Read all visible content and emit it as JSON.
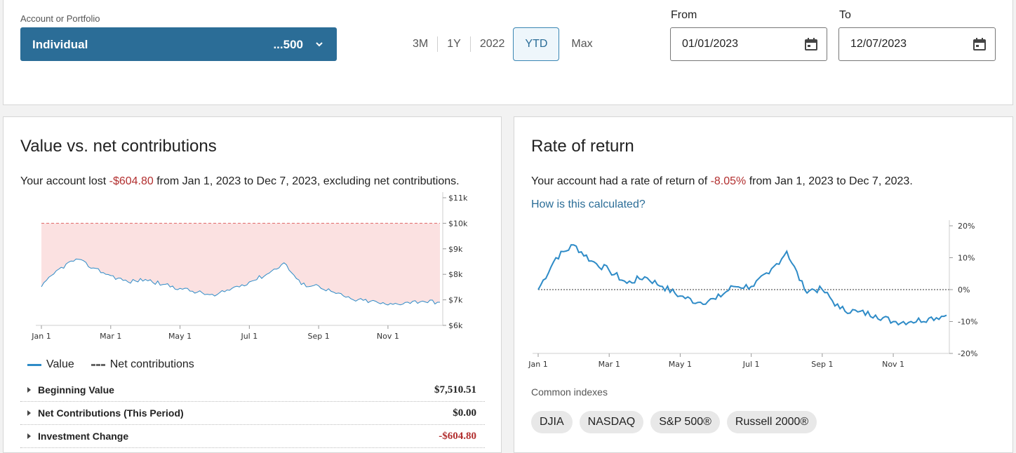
{
  "account": {
    "label": "Account or Portfolio",
    "name": "Individual",
    "number": "...500"
  },
  "range_tabs": [
    {
      "label": "3M",
      "active": false
    },
    {
      "label": "1Y",
      "active": false
    },
    {
      "label": "2022",
      "active": false
    },
    {
      "label": "YTD",
      "active": true
    },
    {
      "label": "Max",
      "active": false
    }
  ],
  "dates": {
    "from_label": "From",
    "from_value": "01/01/2023",
    "to_label": "To",
    "to_value": "12/07/2023"
  },
  "value_card": {
    "title": "Value vs. net contributions",
    "summary_pre": "Your account lost ",
    "summary_amount": "-$604.80",
    "summary_post": " from Jan 1, 2023 to Dec 7, 2023, excluding net contributions.",
    "legend_value": "Value",
    "legend_net": "Net contributions",
    "rows": [
      {
        "label": "Beginning Value",
        "value": "$7,510.51",
        "negative": false
      },
      {
        "label": "Net Contributions (This Period)",
        "value": "$0.00",
        "negative": false
      },
      {
        "label": "Investment Change",
        "value": "-$604.80",
        "negative": true
      }
    ]
  },
  "return_card": {
    "title": "Rate of return",
    "summary_pre": "Your account had a rate of return of ",
    "summary_amount": "-8.05%",
    "summary_post": " from Jan 1, 2023 to Dec 7, 2023.",
    "link": "How is this calculated?",
    "indexes_label": "Common indexes",
    "indexes": [
      "DJIA",
      "NASDAQ",
      "S&P 500®",
      "Russell 2000®"
    ]
  },
  "colors": {
    "accent": "#2b6d97",
    "line": "#2e8bc7",
    "negative": "#b22f2f",
    "fill": "#fbe1e1",
    "net_line": "#e06666"
  },
  "chart_data": [
    {
      "type": "area",
      "title": "",
      "x": [
        "Jan 1",
        "Jan 15",
        "Feb 1",
        "Feb 15",
        "Mar 1",
        "Mar 15",
        "Apr 1",
        "Apr 15",
        "May 1",
        "May 15",
        "Jun 1",
        "Jun 15",
        "Jul 1",
        "Jul 15",
        "Aug 1",
        "Aug 15",
        "Sep 1",
        "Sep 15",
        "Oct 1",
        "Oct 15",
        "Nov 1",
        "Nov 15",
        "Dec 1",
        "Dec 7"
      ],
      "x_ticks": [
        "Jan 1",
        "Mar 1",
        "May 1",
        "Jul 1",
        "Sep 1",
        "Nov 1"
      ],
      "y_ticks": [
        "$6k",
        "$7k",
        "$8k",
        "$9k",
        "$10k",
        "$11k"
      ],
      "ylim": [
        6000,
        11000
      ],
      "series": [
        {
          "name": "Value",
          "values": [
            7510,
            8200,
            8600,
            8250,
            7950,
            7700,
            7800,
            7600,
            7450,
            7300,
            7150,
            7450,
            7700,
            8000,
            8450,
            7600,
            7550,
            7250,
            7000,
            6950,
            6800,
            6900,
            6950,
            6906
          ]
        },
        {
          "name": "Net contributions",
          "values": [
            10000,
            10000,
            10000,
            10000,
            10000,
            10000,
            10000,
            10000,
            10000,
            10000,
            10000,
            10000,
            10000,
            10000,
            10000,
            10000,
            10000,
            10000,
            10000,
            10000,
            10000,
            10000,
            10000,
            10000
          ]
        }
      ]
    },
    {
      "type": "line",
      "title": "",
      "x": [
        "Jan 1",
        "Jan 15",
        "Feb 1",
        "Feb 15",
        "Mar 1",
        "Mar 15",
        "Apr 1",
        "Apr 15",
        "May 1",
        "May 15",
        "Jun 1",
        "Jun 15",
        "Jul 1",
        "Jul 15",
        "Aug 1",
        "Aug 15",
        "Sep 1",
        "Sep 15",
        "Oct 1",
        "Oct 15",
        "Nov 1",
        "Nov 15",
        "Dec 1",
        "Dec 7"
      ],
      "x_ticks": [
        "Jan 1",
        "Mar 1",
        "May 1",
        "Jul 1",
        "Sep 1",
        "Nov 1"
      ],
      "y_ticks": [
        "20%",
        "10%",
        "0%",
        "-10%",
        "-20%"
      ],
      "ylim": [
        -20,
        20
      ],
      "series": [
        {
          "name": "Rate of return",
          "values": [
            0,
            10,
            14,
            9,
            6,
            2,
            4,
            1,
            -2,
            -4,
            -3,
            1,
            1,
            5,
            12,
            0,
            0,
            -6,
            -7,
            -8,
            -10,
            -10,
            -9,
            -8.05
          ]
        }
      ]
    }
  ]
}
